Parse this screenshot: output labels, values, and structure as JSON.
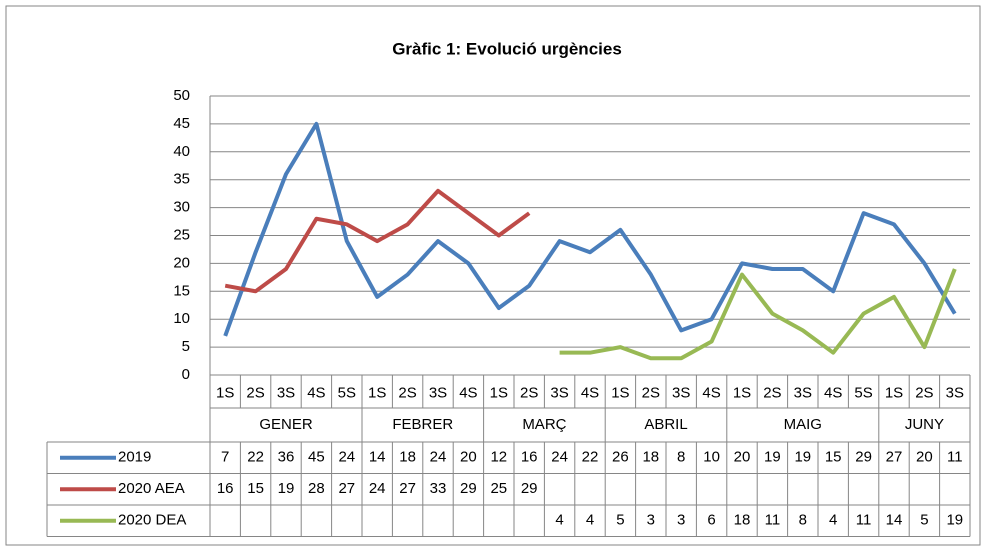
{
  "chart_data": {
    "type": "line",
    "title": "Gràfic 1: Evolució urgències",
    "categories": [
      "1S",
      "2S",
      "3S",
      "4S",
      "5S",
      "1S",
      "2S",
      "3S",
      "4S",
      "1S",
      "2S",
      "3S",
      "4S",
      "1S",
      "2S",
      "3S",
      "4S",
      "1S",
      "2S",
      "3S",
      "4S",
      "5S",
      "1S",
      "2S",
      "3S"
    ],
    "groups": [
      {
        "label": "GENER",
        "span": 5
      },
      {
        "label": "FEBRER",
        "span": 4
      },
      {
        "label": "MARÇ",
        "span": 4
      },
      {
        "label": "ABRIL",
        "span": 4
      },
      {
        "label": "MAIG",
        "span": 5
      },
      {
        "label": "JUNY",
        "span": 3
      }
    ],
    "series": [
      {
        "name": "2019",
        "color": "#4a7ebb",
        "values": [
          7,
          22,
          36,
          45,
          24,
          14,
          18,
          24,
          20,
          12,
          16,
          24,
          22,
          26,
          18,
          8,
          10,
          20,
          19,
          19,
          15,
          29,
          27,
          20,
          11
        ]
      },
      {
        "name": "2020 AEA",
        "color": "#be4b48",
        "values": [
          16,
          15,
          19,
          28,
          27,
          24,
          27,
          33,
          29,
          25,
          29,
          null,
          null,
          null,
          null,
          null,
          null,
          null,
          null,
          null,
          null,
          null,
          null,
          null,
          null
        ]
      },
      {
        "name": "2020 DEA",
        "color": "#98b954",
        "values": [
          null,
          null,
          null,
          null,
          null,
          null,
          null,
          null,
          null,
          null,
          null,
          4,
          4,
          5,
          3,
          3,
          6,
          18,
          11,
          8,
          4,
          11,
          14,
          5,
          19
        ]
      }
    ],
    "ylim": [
      0,
      50
    ],
    "yticks": [
      0,
      5,
      10,
      15,
      20,
      25,
      30,
      35,
      40,
      45,
      50
    ],
    "grid": true
  }
}
